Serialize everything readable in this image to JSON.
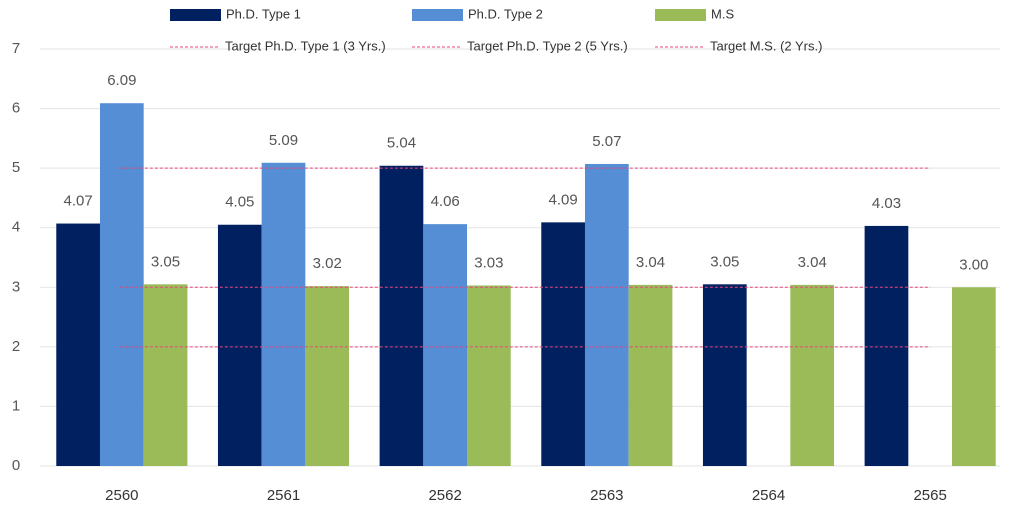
{
  "chart_data": {
    "type": "bar",
    "categories": [
      "2560",
      "2561",
      "2562",
      "2563",
      "2564",
      "2565"
    ],
    "series": [
      {
        "name": "Ph.D. Type 1",
        "color": "#002060",
        "values": [
          4.07,
          4.05,
          5.04,
          4.09,
          3.05,
          4.03
        ],
        "value_labels": [
          "4.07",
          "4.05",
          "5.04",
          "4.09",
          "3.05",
          "4.03"
        ]
      },
      {
        "name": "Ph.D. Type 2",
        "color": "#558ed5",
        "values": [
          6.09,
          5.09,
          4.06,
          5.07,
          null,
          null
        ],
        "value_labels": [
          "6.09",
          "5.09",
          "4.06",
          "5.07",
          null,
          null
        ]
      },
      {
        "name": "M.S",
        "color": "#9bbb59",
        "values": [
          3.05,
          3.02,
          3.03,
          3.04,
          3.04,
          3.0
        ],
        "value_labels": [
          "3.05",
          "3.02",
          "3.03",
          "3.04",
          "3.04",
          "3.00"
        ]
      }
    ],
    "targets": [
      {
        "name": "Target Ph.D. Type 1 (3 Yrs.)",
        "value": 3,
        "color": "#e8457d"
      },
      {
        "name": "Target Ph.D. Type 2 (5 Yrs.)",
        "value": 5,
        "color": "#e8457d"
      },
      {
        "name": "Target M.S. (2 Yrs.)",
        "value": 2,
        "color": "#e8457d"
      }
    ],
    "ylim": [
      0,
      7
    ],
    "yticks": [
      0,
      1,
      2,
      3,
      4,
      5,
      6,
      7
    ],
    "grid": true,
    "legend": "top"
  }
}
